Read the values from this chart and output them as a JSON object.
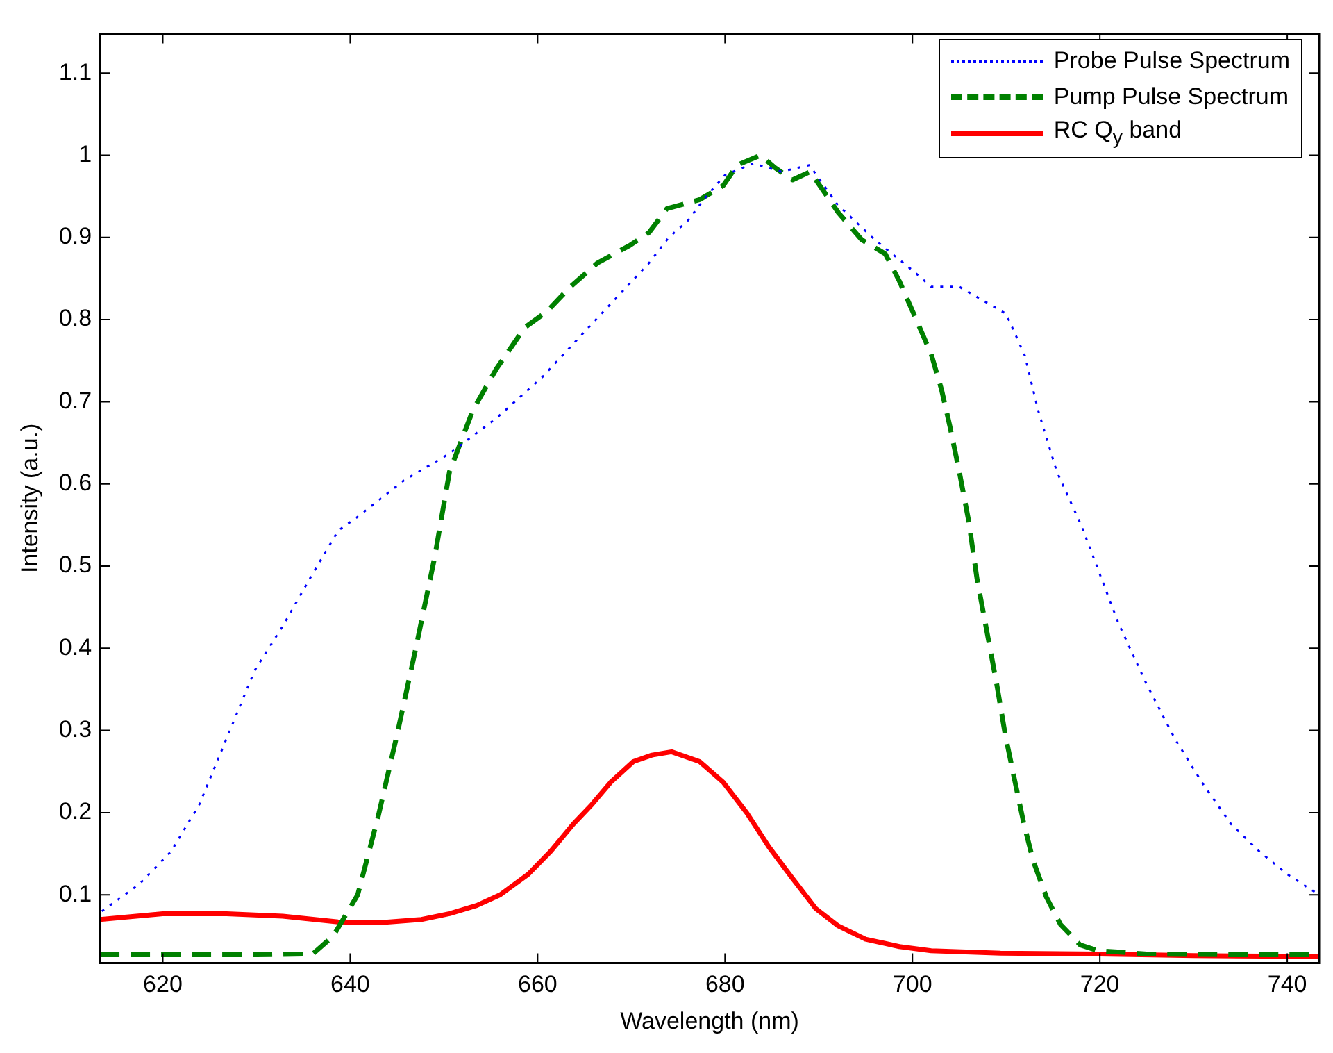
{
  "chart_data": {
    "type": "line",
    "xlabel": "Wavelength (nm)",
    "ylabel": "Intensity (a.u.)",
    "xlim": [
      613.3,
      743.4
    ],
    "ylim": [
      0.017,
      1.148
    ],
    "xticks": [
      620,
      640,
      660,
      680,
      700,
      720,
      740
    ],
    "yticks": [
      0.1,
      0.2,
      0.3,
      0.4,
      0.5,
      0.6,
      0.7,
      0.8,
      0.9,
      1,
      1.1
    ],
    "grid": false,
    "legend": "top right",
    "marker": "none",
    "series": [
      {
        "name": "Probe Pulse Spectrum",
        "color": "#0000ff",
        "line_style": "dotted",
        "x": [
          613.5,
          617.5,
          620.9,
          623.9,
          626.8,
          629.8,
          632.8,
          635.7,
          638.7,
          640.8,
          645.7,
          650.6,
          655.6,
          660.5,
          665.4,
          671.9,
          674,
          676,
          678,
          680,
          683,
          686,
          689,
          692,
          696,
          700,
          702,
          705,
          710,
          712,
          713.4,
          715.4,
          718,
          720,
          722,
          725,
          728,
          731,
          734,
          737,
          740,
          743.4
        ],
        "values": [
          0.08,
          0.113,
          0.153,
          0.21,
          0.29,
          0.373,
          0.427,
          0.485,
          0.543,
          0.56,
          0.604,
          0.637,
          0.68,
          0.73,
          0.79,
          0.869,
          0.9,
          0.92,
          0.95,
          0.976,
          0.99,
          0.98,
          0.988,
          0.94,
          0.897,
          0.86,
          0.84,
          0.84,
          0.807,
          0.756,
          0.69,
          0.615,
          0.55,
          0.49,
          0.43,
          0.356,
          0.29,
          0.235,
          0.186,
          0.153,
          0.125,
          0.1
        ]
      },
      {
        "name": "Pump Pulse Spectrum",
        "color": "#008000",
        "line_style": "dashed",
        "x": [
          613.3,
          620,
          630,
          636,
          638.2,
          640.8,
          643,
          645,
          647,
          649,
          650.6,
          653.1,
          655.6,
          658.6,
          661,
          663.5,
          666.4,
          669.8,
          671.9,
          673.8,
          677.3,
          679.8,
          681.3,
          683.8,
          685.3,
          687.2,
          689.1,
          692.1,
          694.6,
          697.1,
          698.6,
          700.1,
          702,
          703.1,
          704,
          705,
          706,
          706.9,
          708,
          709,
          709.9,
          710.9,
          711.9,
          712.9,
          714.3,
          715.8,
          717.9,
          719.8,
          725,
          735,
          743.4
        ],
        "values": [
          0.027,
          0.027,
          0.027,
          0.028,
          0.05,
          0.1,
          0.196,
          0.295,
          0.4,
          0.51,
          0.615,
          0.69,
          0.74,
          0.79,
          0.81,
          0.84,
          0.869,
          0.89,
          0.906,
          0.935,
          0.946,
          0.963,
          0.988,
          1,
          0.985,
          0.97,
          0.98,
          0.93,
          0.897,
          0.88,
          0.847,
          0.808,
          0.758,
          0.715,
          0.67,
          0.615,
          0.555,
          0.484,
          0.417,
          0.356,
          0.295,
          0.24,
          0.186,
          0.141,
          0.097,
          0.064,
          0.039,
          0.032,
          0.028,
          0.027,
          0.027
        ]
      },
      {
        "name": "RC Q$_{y}$ band",
        "color": "#ff0000",
        "line_style": "solid",
        "x": [
          613.3,
          620,
          626.8,
          632.8,
          638.7,
          643,
          647.6,
          650.6,
          653.5,
          656,
          659,
          661.4,
          663.8,
          665.8,
          667.8,
          670.2,
          672.2,
          674.3,
          677.3,
          679.8,
          682.3,
          684.7,
          687.2,
          689.7,
          692.1,
          695,
          698.6,
          702,
          709.4,
          720,
          730,
          743.4
        ],
        "values": [
          0.07,
          0.077,
          0.077,
          0.074,
          0.067,
          0.066,
          0.07,
          0.077,
          0.087,
          0.1,
          0.125,
          0.153,
          0.186,
          0.21,
          0.237,
          0.262,
          0.27,
          0.274,
          0.262,
          0.237,
          0.2,
          0.158,
          0.12,
          0.083,
          0.062,
          0.046,
          0.037,
          0.032,
          0.029,
          0.028,
          0.026,
          0.025
        ]
      }
    ]
  }
}
